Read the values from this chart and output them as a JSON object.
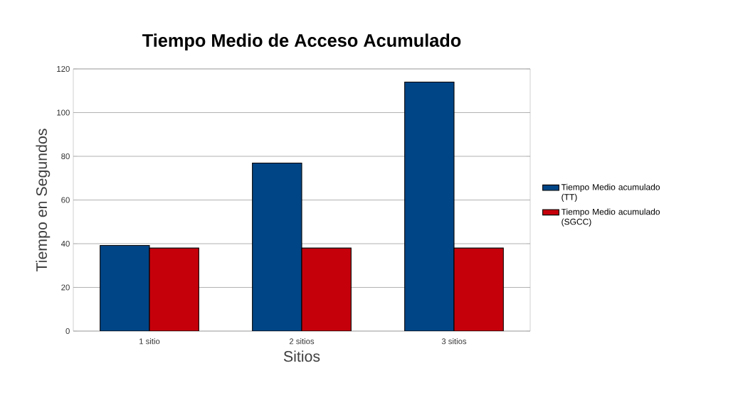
{
  "chart_data": {
    "type": "bar",
    "title": "Tiempo Medio de Acceso Acumulado",
    "xlabel": "Sitios",
    "ylabel": "Tiempo en Segundos",
    "categories": [
      "1 sitio",
      "2 sitios",
      "3 sitios"
    ],
    "series": [
      {
        "name": "Tiempo Medio acumulado (TT)",
        "color": "#004586",
        "values": [
          39.2,
          76.9,
          114
        ]
      },
      {
        "name": "Tiempo Medio acumulado (SGCC)",
        "color": "#c5000b",
        "values": [
          38,
          38,
          38
        ]
      }
    ],
    "ylim": [
      0,
      120
    ],
    "yticks": [
      0,
      20,
      40,
      60,
      80,
      100,
      120
    ],
    "grid": "y",
    "legend": "right"
  }
}
